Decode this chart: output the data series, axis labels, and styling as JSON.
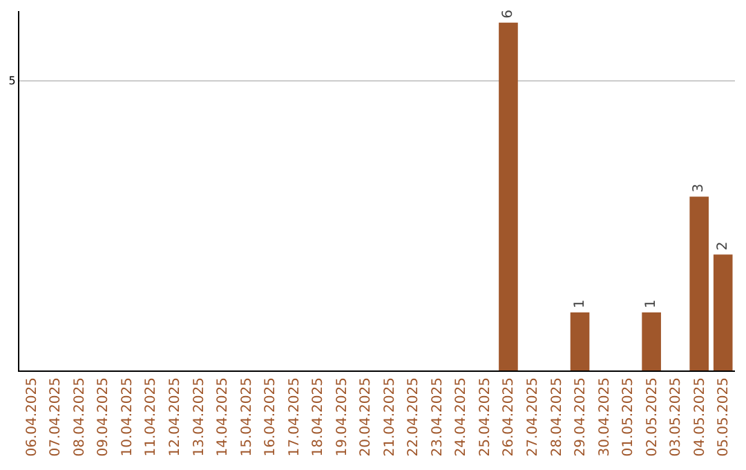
{
  "chart_data": {
    "type": "bar",
    "categories": [
      "06.04.2025",
      "07.04.2025",
      "08.04.2025",
      "09.04.2025",
      "10.04.2025",
      "11.04.2025",
      "12.04.2025",
      "13.04.2025",
      "14.04.2025",
      "15.04.2025",
      "16.04.2025",
      "17.04.2025",
      "18.04.2025",
      "19.04.2025",
      "20.04.2025",
      "21.04.2025",
      "22.04.2025",
      "23.04.2025",
      "24.04.2025",
      "25.04.2025",
      "26.04.2025",
      "27.04.2025",
      "28.04.2025",
      "29.04.2025",
      "30.04.2025",
      "01.05.2025",
      "02.05.2025",
      "03.05.2025",
      "04.05.2025",
      "05.05.2025"
    ],
    "values": [
      null,
      null,
      null,
      null,
      null,
      null,
      null,
      null,
      null,
      null,
      null,
      null,
      null,
      null,
      null,
      null,
      null,
      null,
      null,
      null,
      6,
      null,
      null,
      1,
      null,
      null,
      1,
      null,
      3,
      2
    ],
    "value_labels": [
      null,
      null,
      null,
      null,
      null,
      null,
      null,
      null,
      null,
      null,
      null,
      null,
      null,
      null,
      null,
      null,
      null,
      null,
      null,
      null,
      "6",
      null,
      null,
      "1",
      null,
      null,
      "1",
      null,
      "3",
      "2"
    ],
    "color": "#a0572b",
    "ylim": [
      0,
      6.2
    ],
    "yticks": [
      5
    ],
    "grid": "y"
  }
}
